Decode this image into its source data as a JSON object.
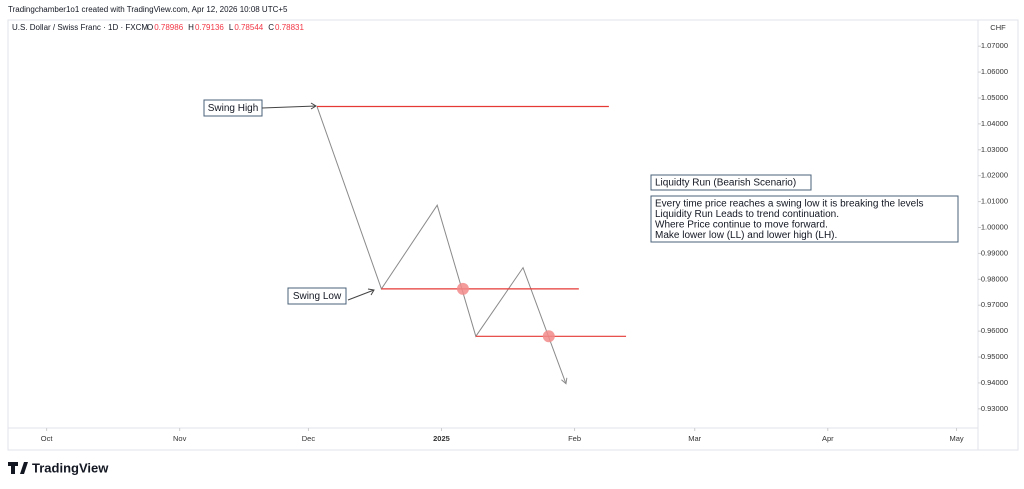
{
  "chart_data": {
    "type": "line",
    "credit": "Tradingchamber1o1 created with TradingView.com, Apr 12, 2026 10:08 UTC+5",
    "symbol": "U.S. Dollar / Swiss Franc · 1D · FXCM",
    "ohlc": [
      {
        "label": "O",
        "value": "0.78986"
      },
      {
        "label": "H",
        "value": "0.79136"
      },
      {
        "label": "L",
        "value": "0.78544"
      },
      {
        "label": "C",
        "value": "0.78831"
      }
    ],
    "currency": "CHF",
    "brand": "TradingView",
    "xlim": [
      "2024-09-22",
      "2025-05-06"
    ],
    "xticks": [
      {
        "value": "2024-10-01",
        "label": "Oct"
      },
      {
        "value": "2024-11-01",
        "label": "Nov"
      },
      {
        "value": "2024-12-01",
        "label": "Dec"
      },
      {
        "value": "2025-01-01",
        "label": "2025"
      },
      {
        "value": "2025-02-01",
        "label": "Feb"
      },
      {
        "value": "2025-03-01",
        "label": "Mar"
      },
      {
        "value": "2025-04-01",
        "label": "Apr"
      },
      {
        "value": "2025-05-01",
        "label": "May"
      }
    ],
    "ylim": [
      0.9226,
      1.0801
    ],
    "yticks": [
      {
        "value": 1.07,
        "label": "1.07000"
      },
      {
        "value": 1.06,
        "label": "1.06000"
      },
      {
        "value": 1.05,
        "label": "1.05000"
      },
      {
        "value": 1.04,
        "label": "1.04000"
      },
      {
        "value": 1.03,
        "label": "1.03000"
      },
      {
        "value": 1.02,
        "label": "1.02000"
      },
      {
        "value": 1.01,
        "label": "1.01000"
      },
      {
        "value": 1.0,
        "label": "1.00000"
      },
      {
        "value": 0.99,
        "label": "0.99000"
      },
      {
        "value": 0.98,
        "label": "0.98000"
      },
      {
        "value": 0.97,
        "label": "0.97000"
      },
      {
        "value": 0.96,
        "label": "0.96000"
      },
      {
        "value": 0.95,
        "label": "0.95000"
      },
      {
        "value": 0.94,
        "label": "0.94000"
      },
      {
        "value": 0.93,
        "label": "0.93000"
      }
    ],
    "series": [
      {
        "color": "#8a8a8a",
        "x": [
          "2024-12-03",
          "2024-12-18",
          "2024-12-31",
          "2025-01-09",
          "2025-01-20",
          "2025-01-30"
        ],
        "values": [
          1.0467,
          0.9763,
          1.0086,
          0.958,
          0.9845,
          0.9397
        ]
      }
    ],
    "levels": [
      {
        "value": 1.0467,
        "start": "2024-12-03",
        "end": "2025-02-09",
        "color": "#e53935"
      },
      {
        "value": 0.9763,
        "start": "2024-12-18",
        "end": "2025-02-02",
        "color": "#e53935"
      },
      {
        "value": 0.958,
        "start": "2025-01-09",
        "end": "2025-02-13",
        "color": "#e53935"
      }
    ],
    "markers": [
      {
        "x": "2025-01-06",
        "y": 0.9763,
        "color": "#f28b8b"
      },
      {
        "x": "2025-01-26",
        "y": 0.958,
        "color": "#f28b8b"
      }
    ],
    "swing_high": "Swing High",
    "swing_low": "Swing Low",
    "scenario_title": "Liquidty Run (Bearish Scenario)",
    "scenario_lines": [
      "Every time price reaches a swing low it is breaking the levels",
      "Liquidity Run Leads to trend continuation.",
      "Where Price continue to move forward.",
      "Make lower low (LL) and lower high (LH)."
    ]
  }
}
